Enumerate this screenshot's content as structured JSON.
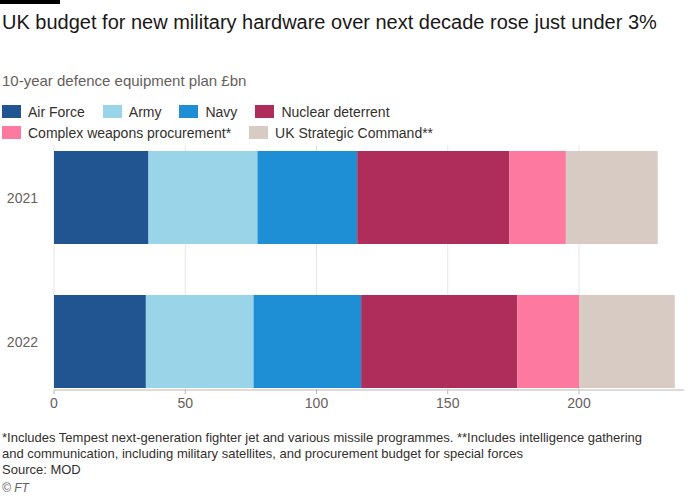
{
  "chart_data": {
    "type": "bar",
    "orientation": "horizontal",
    "stacked": true,
    "title": "UK budget for new military hardware over next decade rose just under 3%",
    "subtitle": "10-year defence equipment plan £bn",
    "categories": [
      "2021",
      "2022"
    ],
    "series": [
      {
        "name": "Air Force",
        "color": "#205592",
        "values": [
          36,
          35
        ]
      },
      {
        "name": "Army",
        "color": "#9ad4e8",
        "values": [
          41.5,
          41
        ]
      },
      {
        "name": "Navy",
        "color": "#1e8fd5",
        "values": [
          38,
          41
        ]
      },
      {
        "name": "Nuclear deterrent",
        "color": "#af2d5a",
        "values": [
          58,
          59.5
        ]
      },
      {
        "name": "Complex weapons procurement*",
        "color": "#fd79a0",
        "values": [
          21.5,
          23.5
        ]
      },
      {
        "name": "UK Strategic Command**",
        "color": "#d8cbc3",
        "values": [
          35,
          36.5
        ]
      }
    ],
    "xlim": [
      0,
      240
    ],
    "xticks": [
      0,
      50,
      100,
      150,
      200
    ],
    "grid": true,
    "legend": "top-left",
    "footnote": "*Includes Tempest next-generation fighter jet and various missile programmes. **Includes intelligence gathering and communication, including military satellites, and procurement budget for special forces",
    "source": "Source: MOD",
    "credit": "© FT"
  }
}
